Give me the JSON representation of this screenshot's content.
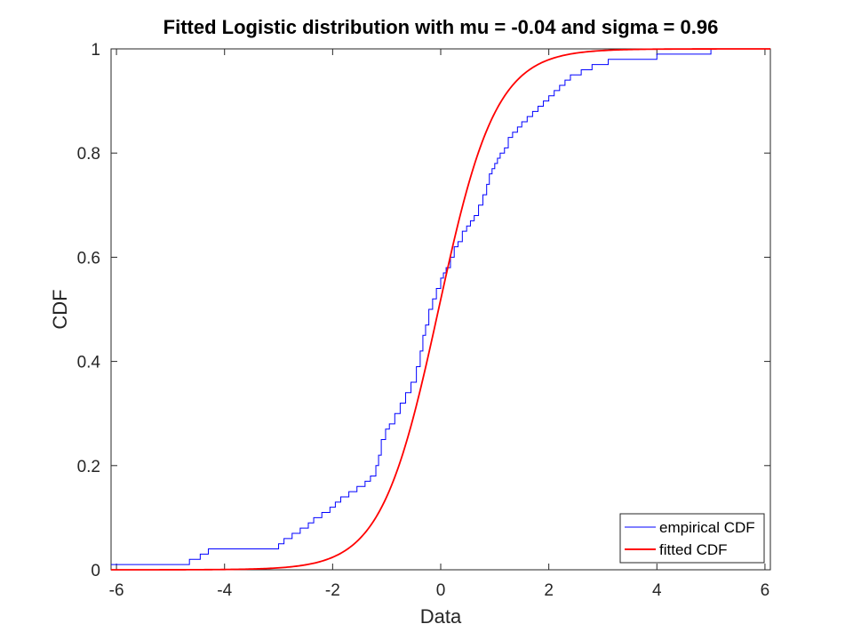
{
  "chart_data": {
    "type": "line",
    "title": "Fitted Logistic distribution with mu = -0.04 and sigma = 0.96",
    "xlabel": "Data",
    "ylabel": "CDF",
    "xlim": [
      -6.1,
      6.1
    ],
    "ylim": [
      0,
      1
    ],
    "xticks": [
      -6,
      -4,
      -2,
      0,
      2,
      4,
      6
    ],
    "xtick_labels": [
      "-6",
      "-4",
      "-2",
      "0",
      "2",
      "4",
      "6"
    ],
    "yticks": [
      0,
      0.2,
      0.4,
      0.6,
      0.8,
      1
    ],
    "ytick_labels": [
      "0",
      "0.2",
      "0.4",
      "0.6",
      "0.8",
      "1"
    ],
    "grid": false,
    "legend_position": "bottom-right",
    "fit_params": {
      "mu": -0.04,
      "sigma": 0.96
    },
    "series": [
      {
        "name": "empirical CDF",
        "color": "#0000ff",
        "style": "stairs",
        "x": [
          -6.1,
          -4.65,
          -4.45,
          -4.3,
          -3.0,
          -2.9,
          -2.75,
          -2.6,
          -2.45,
          -2.35,
          -2.2,
          -2.05,
          -1.95,
          -1.85,
          -1.7,
          -1.55,
          -1.4,
          -1.3,
          -1.2,
          -1.15,
          -1.1,
          -1.02,
          -0.95,
          -0.85,
          -0.75,
          -0.65,
          -0.55,
          -0.45,
          -0.38,
          -0.33,
          -0.28,
          -0.22,
          -0.15,
          -0.08,
          0.0,
          0.05,
          0.1,
          0.18,
          0.25,
          0.32,
          0.4,
          0.48,
          0.55,
          0.62,
          0.7,
          0.78,
          0.85,
          0.9,
          0.95,
          1.0,
          1.05,
          1.1,
          1.18,
          1.25,
          1.33,
          1.42,
          1.5,
          1.6,
          1.7,
          1.8,
          1.9,
          2.0,
          2.1,
          2.2,
          2.3,
          2.4,
          2.5,
          2.6,
          2.7,
          2.8,
          2.9,
          3.0,
          3.1,
          3.2,
          4.0,
          4.5,
          5.0,
          6.1
        ],
        "y": [
          0.01,
          0.02,
          0.03,
          0.04,
          0.05,
          0.06,
          0.07,
          0.08,
          0.09,
          0.1,
          0.11,
          0.12,
          0.13,
          0.14,
          0.15,
          0.16,
          0.17,
          0.18,
          0.2,
          0.22,
          0.25,
          0.27,
          0.28,
          0.3,
          0.32,
          0.34,
          0.36,
          0.39,
          0.42,
          0.45,
          0.47,
          0.5,
          0.52,
          0.54,
          0.56,
          0.57,
          0.58,
          0.6,
          0.62,
          0.63,
          0.65,
          0.66,
          0.67,
          0.68,
          0.7,
          0.72,
          0.74,
          0.76,
          0.77,
          0.78,
          0.79,
          0.8,
          0.81,
          0.83,
          0.84,
          0.85,
          0.86,
          0.87,
          0.88,
          0.89,
          0.9,
          0.91,
          0.92,
          0.93,
          0.94,
          0.95,
          0.95,
          0.96,
          0.96,
          0.97,
          0.97,
          0.97,
          0.98,
          0.98,
          0.99,
          0.99,
          1.0,
          1.0
        ]
      },
      {
        "name": "fitted CDF",
        "color": "#ff0000",
        "style": "logistic_cdf"
      }
    ]
  }
}
